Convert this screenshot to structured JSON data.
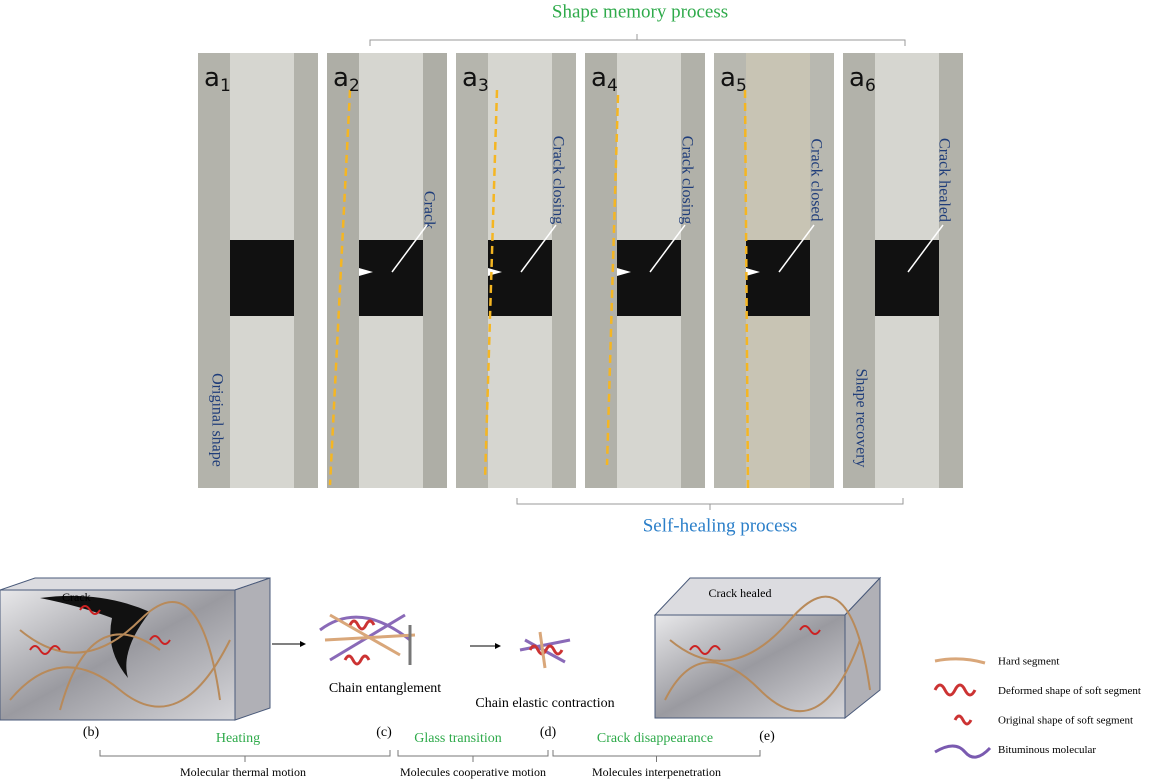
{
  "top": {
    "title": "Shape memory process",
    "subtitle": "Self-healing process"
  },
  "panels": [
    {
      "letter": "a",
      "index": "1",
      "captions": [
        "Original shape"
      ]
    },
    {
      "letter": "a",
      "index": "2",
      "captions": [
        "Crack"
      ]
    },
    {
      "letter": "a",
      "index": "3",
      "captions": [
        "Crack closing"
      ]
    },
    {
      "letter": "a",
      "index": "4",
      "captions": [
        "Crack closing"
      ]
    },
    {
      "letter": "a",
      "index": "5",
      "captions": [
        "Crack closed"
      ]
    },
    {
      "letter": "a",
      "index": "6",
      "captions": [
        "Crack healed",
        "Shape recovery"
      ]
    }
  ],
  "mechanism": {
    "crack_label": "Crack",
    "healed_label": "Crack healed",
    "states": [
      "Chain entanglement",
      "Chain elastic contraction"
    ],
    "letters": [
      "(b)",
      "(c)",
      "(d)",
      "(e)"
    ],
    "stages": [
      {
        "name": "Heating",
        "motion": "Molecular thermal motion"
      },
      {
        "name": "Glass transition",
        "motion": "Molecules cooperative motion"
      },
      {
        "name": "Crack disappearance",
        "motion": "Molecules interpenetration"
      }
    ]
  },
  "legend": [
    "Hard segment",
    "Deformed shape of soft segment",
    "Original shape of soft segment",
    "Bituminous molecular"
  ]
}
